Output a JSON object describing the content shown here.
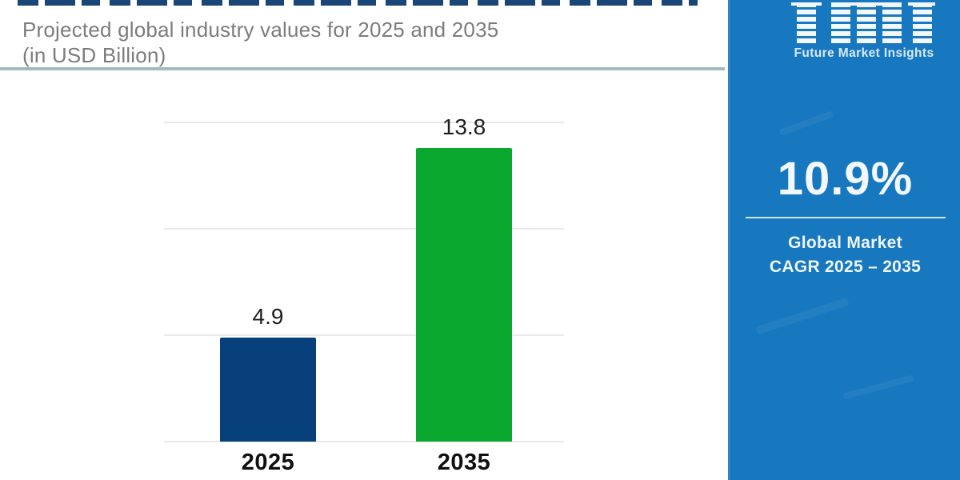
{
  "header": {
    "title_line1": "Projected global industry values for 2025 and 2035",
    "title_line2": "(in USD Billion)"
  },
  "chart_data": {
    "type": "bar",
    "title": "Projected global industry values for 2025 and 2035 (in USD Billion)",
    "categories": [
      "2025",
      "2035"
    ],
    "values": [
      4.9,
      13.8
    ],
    "value_labels": [
      "4.9",
      "13.8"
    ],
    "bar_colors": [
      "#07407a",
      "#0aa82e"
    ],
    "xlabel": "",
    "ylabel": "",
    "ylim": [
      0,
      15.1
    ],
    "gridlines": [
      0,
      5,
      10,
      15
    ],
    "grid": "horizontal-only",
    "legend": "none",
    "y_tick_labels_visible": false
  },
  "sidebar": {
    "logo": {
      "name": "fmi-logo",
      "tagline": "Future Market Insights"
    },
    "cagr": {
      "value": "10.9%",
      "caption_line1": "Global Market",
      "caption_line2": "CAGR 2025 – 2035"
    }
  },
  "colors": {
    "sidebar_background": "#1878bf",
    "bar_2025": "#07407a",
    "bar_2035": "#0aa82e",
    "title_text": "#7c7c7c",
    "title_divider": "#a3b8c2",
    "gridline": "#e9e9e9",
    "clipped_top_heading": "#0d3b70",
    "sidebar_text": "#ffffff"
  }
}
